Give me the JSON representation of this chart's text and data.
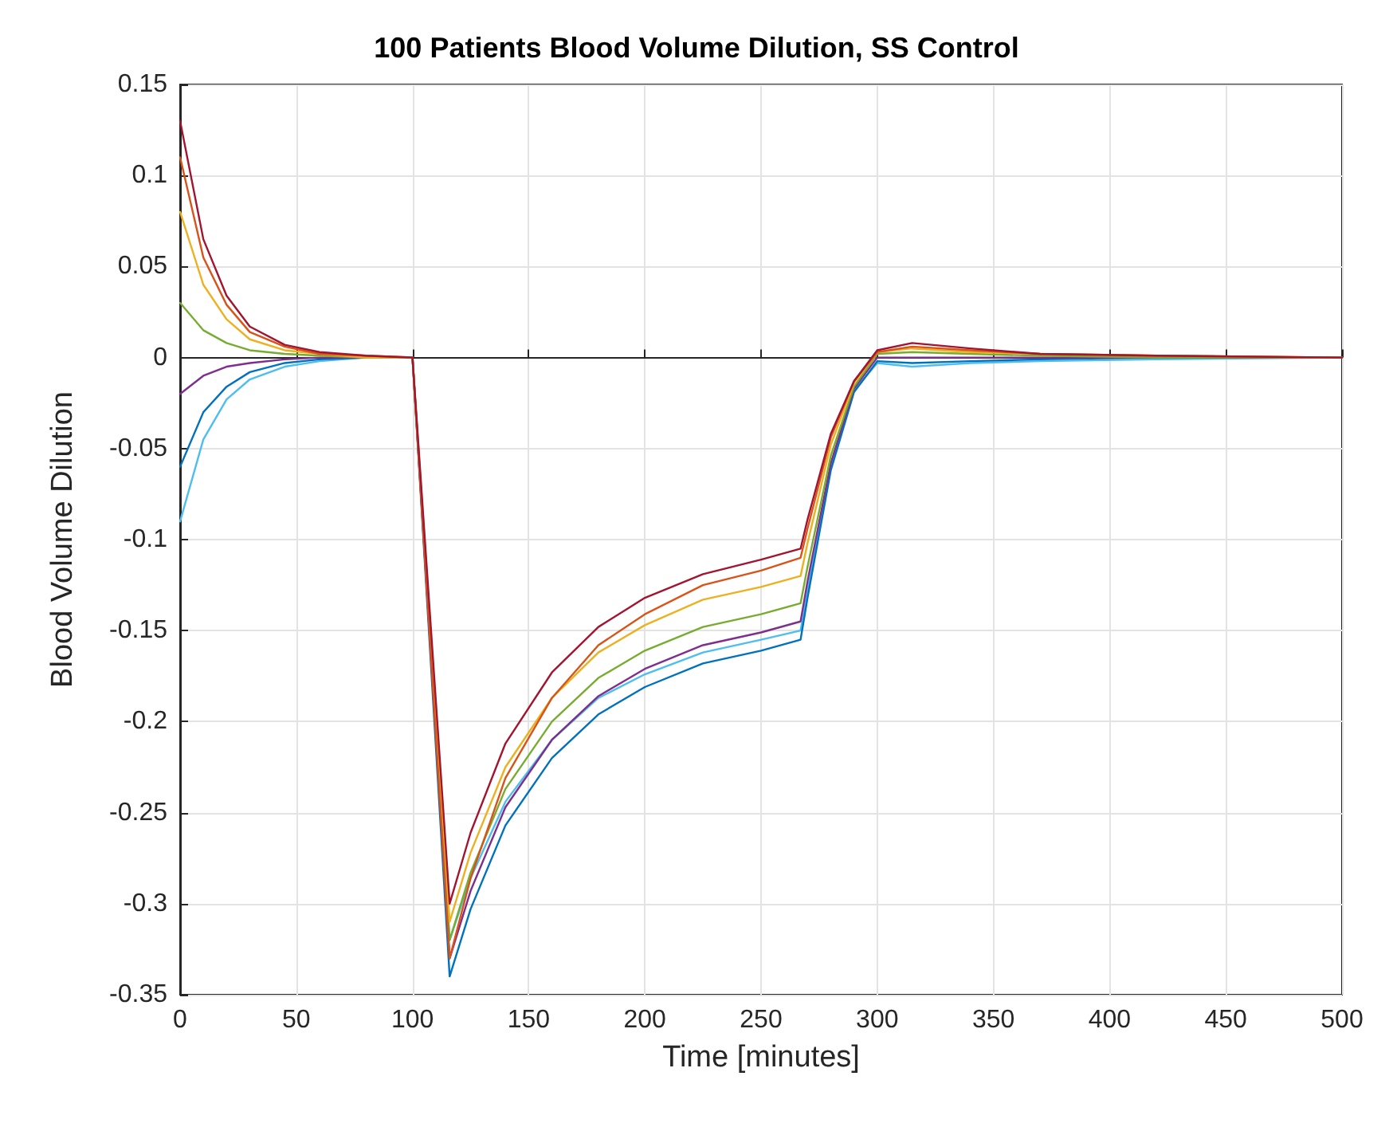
{
  "chart_data": {
    "type": "line",
    "title": "100 Patients Blood Volume Dilution, SS Control",
    "xlabel": "Time [minutes]",
    "ylabel": "Blood Volume Dilution",
    "x": [
      0,
      10,
      20,
      30,
      45,
      60,
      80,
      100,
      116,
      125,
      140,
      160,
      180,
      200,
      225,
      250,
      267,
      270,
      280,
      290,
      300,
      315,
      340,
      370,
      420,
      500
    ],
    "series": [
      {
        "color": "#4dbeee",
        "values": [
          -0.09,
          -0.045,
          -0.023,
          -0.012,
          -0.005,
          -0.002,
          0,
          0,
          -0.32,
          -0.286,
          -0.244,
          -0.21,
          -0.187,
          -0.174,
          -0.162,
          -0.155,
          -0.15,
          -0.128,
          -0.06,
          -0.018,
          -0.003,
          -0.005,
          -0.003,
          -0.002,
          -0.001,
          0
        ]
      },
      {
        "color": "#0072bd",
        "values": [
          -0.06,
          -0.03,
          -0.016,
          -0.008,
          -0.003,
          -0.001,
          0,
          0,
          -0.34,
          -0.303,
          -0.257,
          -0.22,
          -0.196,
          -0.181,
          -0.168,
          -0.161,
          -0.155,
          -0.132,
          -0.062,
          -0.019,
          -0.002,
          -0.003,
          -0.002,
          -0.001,
          0,
          0
        ]
      },
      {
        "color": "#7e2f8e",
        "values": [
          -0.02,
          -0.01,
          -0.005,
          -0.003,
          -0.001,
          0,
          0,
          0,
          -0.33,
          -0.293,
          -0.247,
          -0.21,
          -0.186,
          -0.171,
          -0.158,
          -0.151,
          -0.145,
          -0.123,
          -0.058,
          -0.017,
          0,
          0,
          0,
          0,
          0,
          0
        ]
      },
      {
        "color": "#77ac30",
        "values": [
          0.03,
          0.015,
          0.008,
          0.004,
          0.002,
          0.001,
          0,
          0,
          -0.32,
          -0.283,
          -0.237,
          -0.2,
          -0.176,
          -0.161,
          -0.148,
          -0.141,
          -0.135,
          -0.115,
          -0.054,
          -0.016,
          0.002,
          0.003,
          0.002,
          0.001,
          0,
          0
        ]
      },
      {
        "color": "#edb120",
        "values": [
          0.08,
          0.04,
          0.021,
          0.01,
          0.004,
          0.002,
          0,
          0,
          -0.31,
          -0.272,
          -0.225,
          -0.187,
          -0.162,
          -0.147,
          -0.133,
          -0.126,
          -0.12,
          -0.102,
          -0.048,
          -0.014,
          0.003,
          0.005,
          0.003,
          0.002,
          0.001,
          0
        ]
      },
      {
        "color": "#d95319",
        "values": [
          0.11,
          0.055,
          0.029,
          0.014,
          0.006,
          0.002,
          0.001,
          0,
          -0.33,
          -0.286,
          -0.231,
          -0.187,
          -0.158,
          -0.141,
          -0.125,
          -0.117,
          -0.11,
          -0.094,
          -0.044,
          -0.013,
          0.003,
          0.006,
          0.004,
          0.002,
          0.001,
          0
        ]
      },
      {
        "color": "#a2142f",
        "values": [
          0.13,
          0.065,
          0.034,
          0.017,
          0.007,
          0.003,
          0.001,
          0,
          -0.3,
          -0.261,
          -0.212,
          -0.173,
          -0.148,
          -0.132,
          -0.119,
          -0.111,
          -0.105,
          -0.089,
          -0.042,
          -0.013,
          0.004,
          0.008,
          0.005,
          0.002,
          0.001,
          0
        ]
      }
    ],
    "xlim": [
      0,
      500
    ],
    "xticks": [
      0,
      50,
      100,
      150,
      200,
      250,
      300,
      350,
      400,
      450,
      500
    ],
    "ylim": [
      -0.35,
      0.15
    ],
    "yticks": [
      -0.35,
      -0.3,
      -0.25,
      -0.2,
      -0.15,
      -0.1,
      -0.05,
      0,
      0.05,
      0.1,
      0.15
    ],
    "grid": true,
    "marker": "none",
    "line_style": "solid"
  }
}
